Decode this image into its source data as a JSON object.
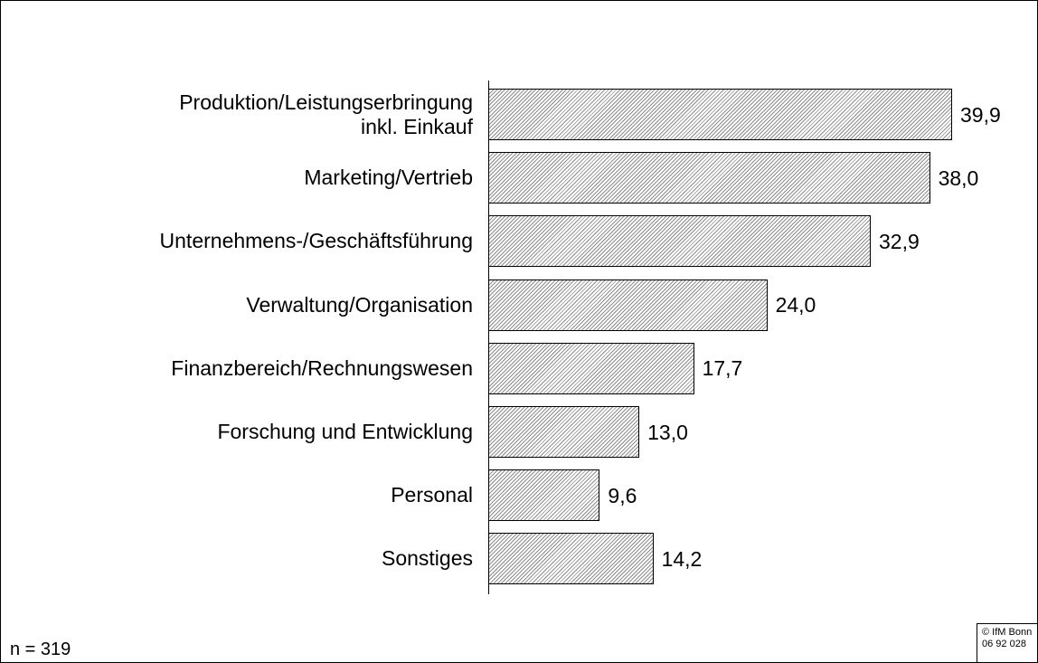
{
  "chart_data": {
    "type": "hbar",
    "categories": [
      "Produktion/Leistungserbringung\ninkl. Einkauf",
      "Marketing/Vertrieb",
      "Unternehmens-/Geschäftsführung",
      "Verwaltung/Organisation",
      "Finanzbereich/Rechnungswesen",
      "Forschung und Entwicklung",
      "Personal",
      "Sonstiges"
    ],
    "values": [
      39.9,
      38.0,
      32.9,
      24.0,
      17.7,
      13.0,
      9.6,
      14.2
    ],
    "value_labels": [
      "39,9",
      "38,0",
      "32,9",
      "24,0",
      "17,7",
      "13,0",
      "9,6",
      "14,2"
    ],
    "note": "n = 319",
    "source": "© IfM Bonn\n06 92 028"
  }
}
